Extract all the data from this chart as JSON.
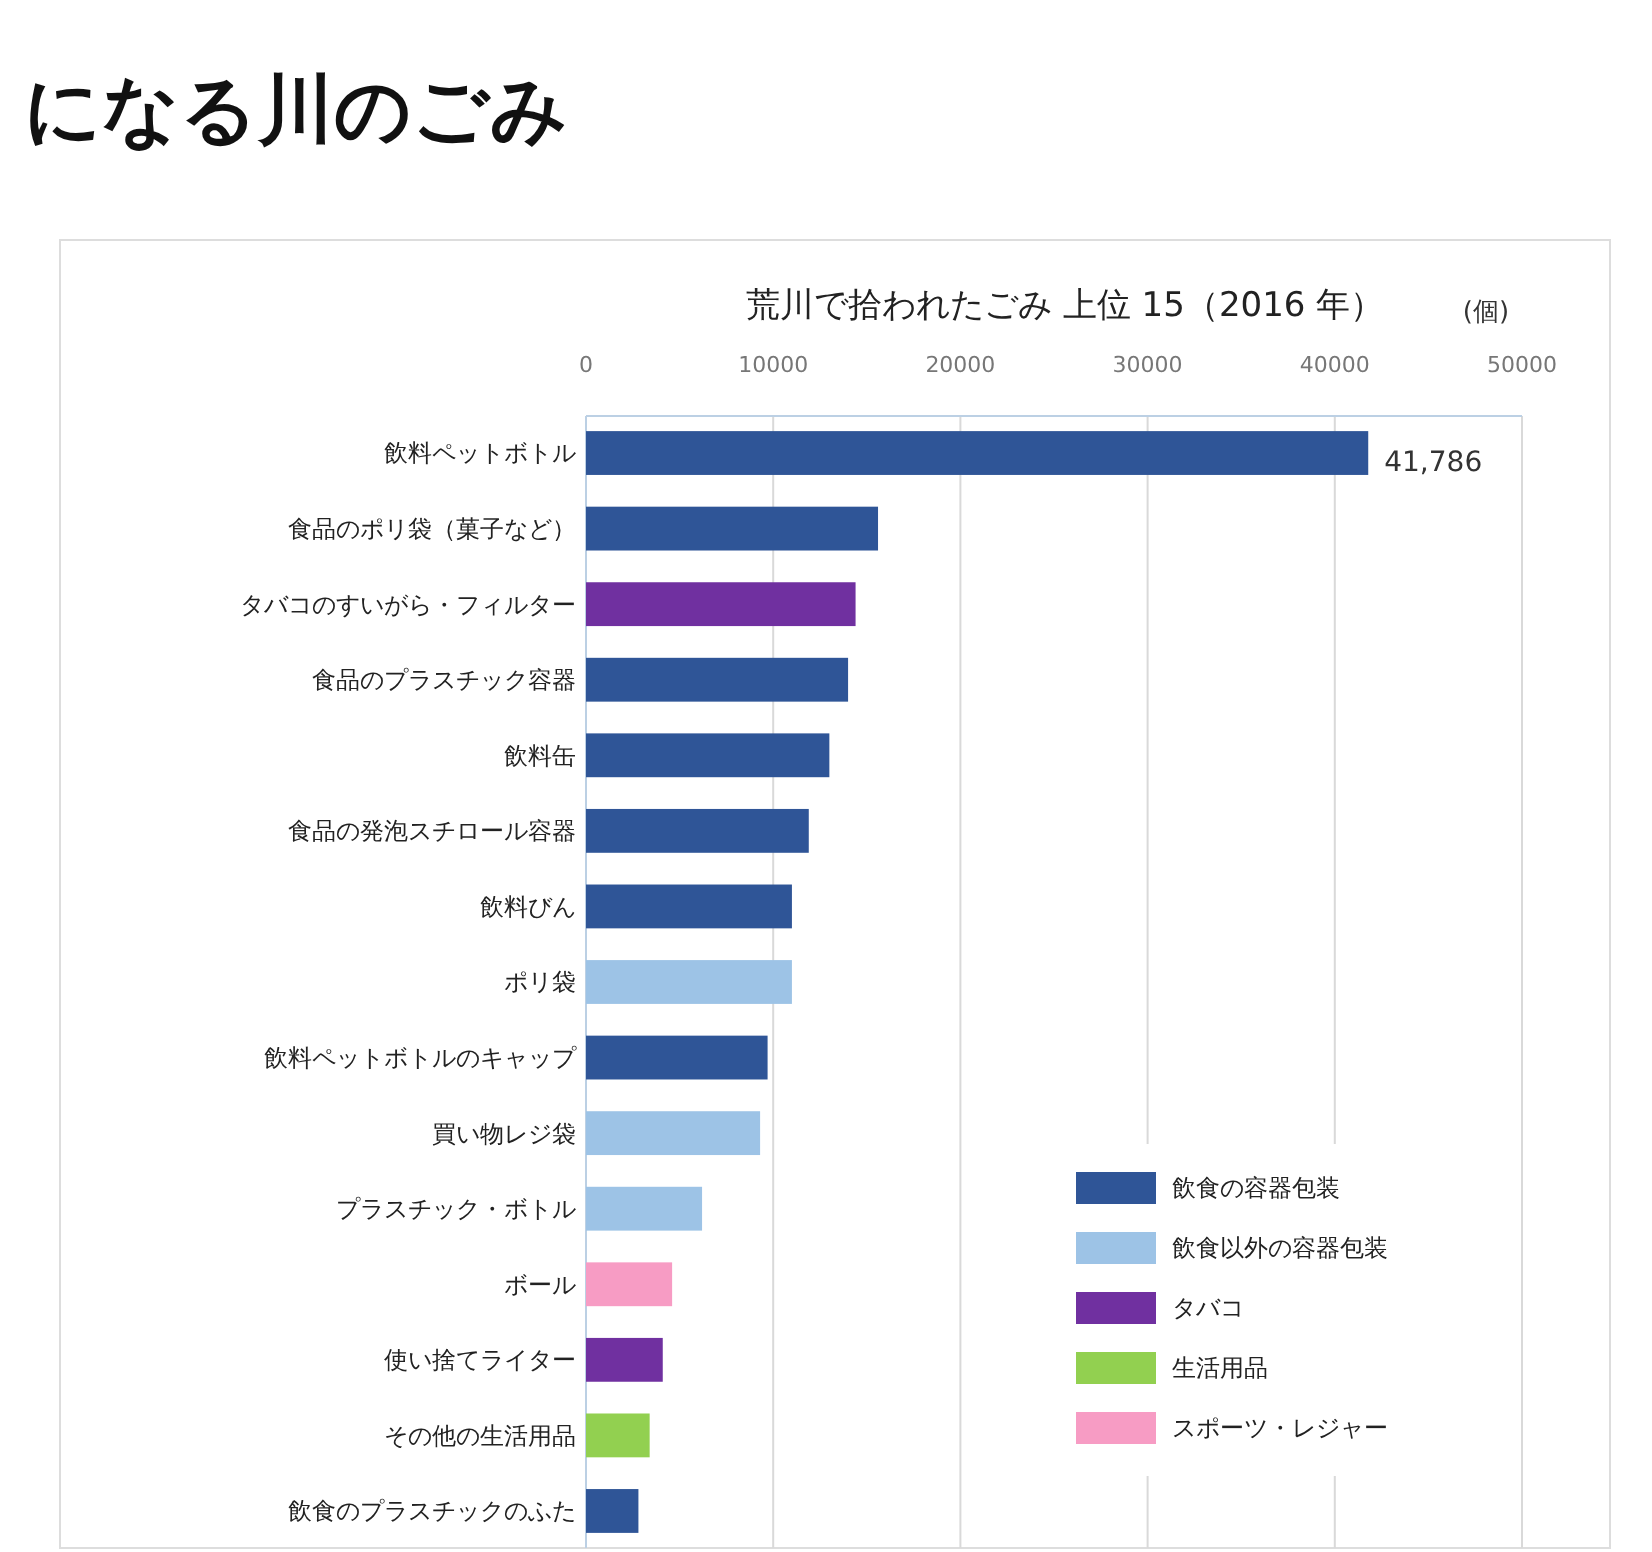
{
  "chart_data": {
    "type": "bar",
    "orientation": "horizontal",
    "title": "荒川で拾われたごみ  上位 15（2016 年）",
    "xlabel": "(個)",
    "annotations": [
      "になる川のごみ"
    ],
    "categories": [
      "飲料ペットボトル",
      "食品のポリ袋（菓子など）",
      "タバコのすいがら・フィルター",
      "食品のプラスチック容器",
      "飲料缶",
      "食品の発泡スチロール容器",
      "飲料びん",
      "ポリ袋",
      "飲料ペットボトルのキャップ",
      "買い物レジ袋",
      "プラスチック・ボトル",
      "ボール",
      "使い捨てライター",
      "その他の生活用品",
      "飲食のプラスチックのふた"
    ],
    "series": [
      {
        "name": "飲食の容器包装",
        "color": "#2f5597",
        "values": [
          41786,
          15600,
          null,
          14000,
          13000,
          11900,
          11000,
          null,
          9700,
          null,
          null,
          null,
          null,
          null,
          2800
        ],
        "value_labels": [
          "41,786",
          null,
          null,
          null,
          null,
          null,
          null,
          null,
          null,
          null,
          null,
          null,
          null,
          null,
          null
        ]
      },
      {
        "name": "飲食以外の容器包装",
        "color": "#9dc3e6",
        "values": [
          null,
          null,
          null,
          null,
          null,
          null,
          null,
          11000,
          null,
          9300,
          6200,
          null,
          null,
          null,
          null
        ]
      },
      {
        "name": "タバコ",
        "color": "#7030a0",
        "values": [
          null,
          null,
          14400,
          null,
          null,
          null,
          null,
          null,
          null,
          null,
          null,
          null,
          4100,
          null,
          null
        ]
      },
      {
        "name": "生活用品",
        "color": "#92d050",
        "values": [
          null,
          null,
          null,
          null,
          null,
          null,
          null,
          null,
          null,
          null,
          null,
          null,
          null,
          3400,
          null
        ]
      },
      {
        "name": "スポーツ・レジャー",
        "color": "#f79cc4",
        "values": [
          null,
          null,
          null,
          null,
          null,
          null,
          null,
          null,
          null,
          null,
          null,
          4600,
          null,
          null,
          null
        ]
      }
    ],
    "xlim": [
      0,
      50000
    ],
    "xticks": [
      0,
      10000,
      20000,
      30000,
      40000,
      50000
    ],
    "grid": "x",
    "legend": "bottom right"
  }
}
